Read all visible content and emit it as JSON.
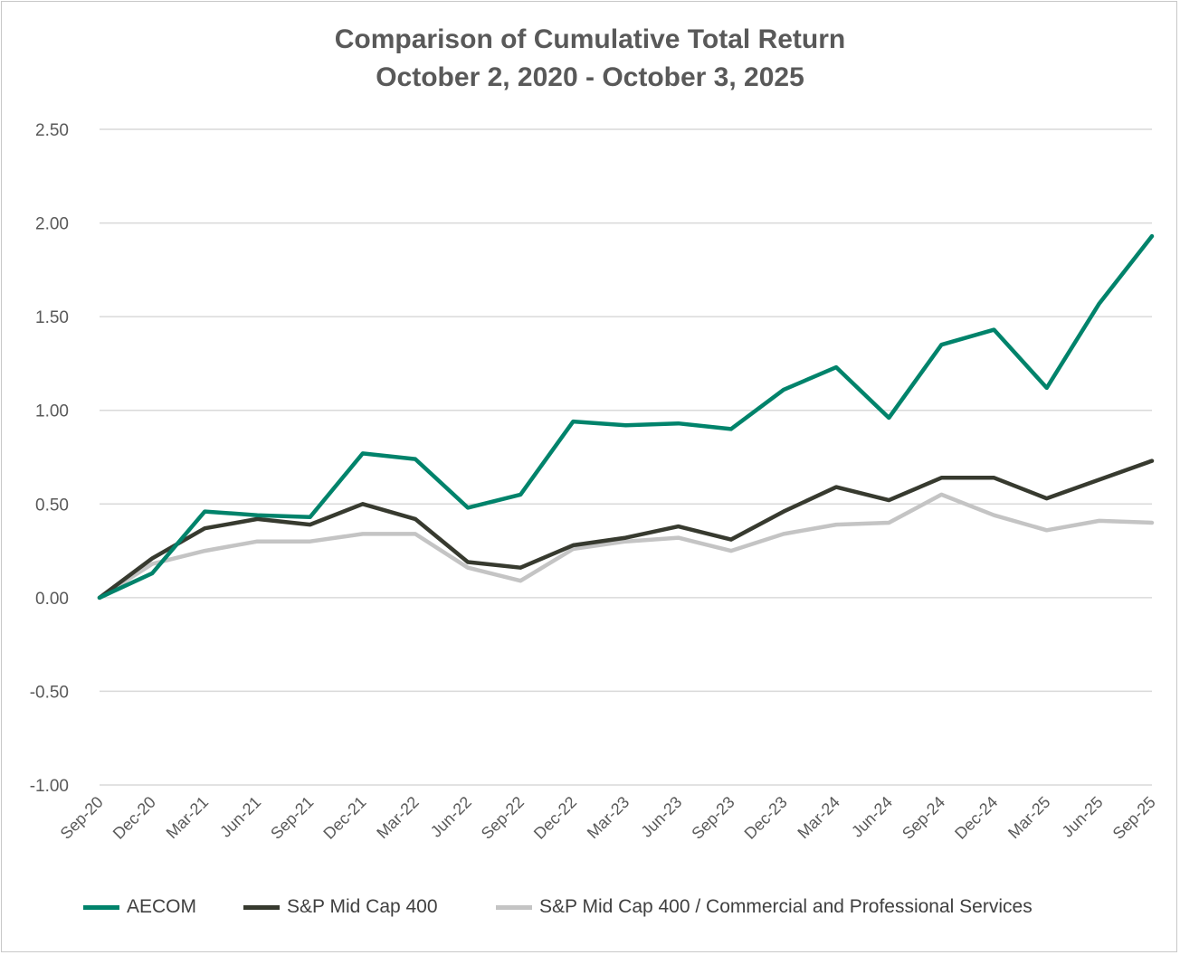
{
  "chart_data": {
    "type": "line",
    "title": "Comparison of Cumulative Total Return",
    "subtitle": "October 2, 2020 - October 3, 2025",
    "x": [
      "Sep-20",
      "Dec-20",
      "Mar-21",
      "Jun-21",
      "Sep-21",
      "Dec-21",
      "Mar-22",
      "Jun-22",
      "Sep-22",
      "Dec-22",
      "Mar-23",
      "Jun-23",
      "Sep-23",
      "Dec-23",
      "Mar-24",
      "Jun-24",
      "Sep-24",
      "Dec-24",
      "Mar-25",
      "Jun-25",
      "Sep-25"
    ],
    "ylim": [
      -1.0,
      2.5
    ],
    "yticks": [
      "2.50",
      "2.00",
      "1.50",
      "1.00",
      "0.50",
      "0.00",
      "-0.50",
      "-1.00"
    ],
    "ytick_values": [
      2.5,
      2.0,
      1.5,
      1.0,
      0.5,
      0.0,
      -0.5,
      -1.0
    ],
    "grid": true,
    "legend_position": "bottom",
    "series": [
      {
        "name": "AECOM",
        "color": "#00836b",
        "values": [
          0.0,
          0.13,
          0.46,
          0.44,
          0.43,
          0.77,
          0.74,
          0.48,
          0.55,
          0.94,
          0.92,
          0.93,
          0.9,
          1.11,
          1.23,
          0.96,
          1.35,
          1.43,
          1.12,
          1.57,
          1.93
        ]
      },
      {
        "name": "S&P Mid Cap 400",
        "color": "#373a2f",
        "values": [
          0.0,
          0.21,
          0.37,
          0.42,
          0.39,
          0.5,
          0.42,
          0.19,
          0.16,
          0.28,
          0.32,
          0.38,
          0.31,
          0.46,
          0.59,
          0.52,
          0.64,
          0.64,
          0.53,
          0.63,
          0.73
        ]
      },
      {
        "name": "S&P Mid Cap 400 / Commercial and Professional Services",
        "color": "#c4c4c4",
        "values": [
          0.0,
          0.18,
          0.25,
          0.3,
          0.3,
          0.34,
          0.34,
          0.16,
          0.09,
          0.26,
          0.3,
          0.32,
          0.25,
          0.34,
          0.39,
          0.4,
          0.55,
          0.44,
          0.36,
          0.41,
          0.4
        ]
      }
    ]
  }
}
